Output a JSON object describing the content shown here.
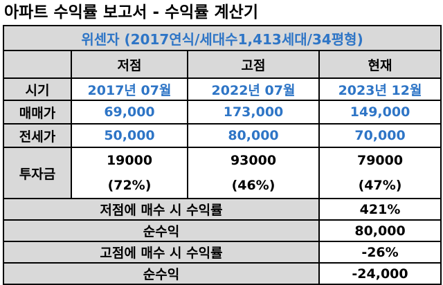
{
  "title": "아파트 수익률 보고서 - 수익률 계산기",
  "subtitle": "위센자 (2017연식/세대수1,413세대/34평형)",
  "columns": [
    "저점",
    "고점",
    "현재"
  ],
  "rows": {
    "period": {
      "label": "시기",
      "values": [
        "2017년 07월",
        "2022년 07월",
        "2023년 12월"
      ]
    },
    "sale_price": {
      "label": "매매가",
      "values": [
        "69,000",
        "173,000",
        "149,000"
      ]
    },
    "jeonse_price": {
      "label": "전세가",
      "values": [
        "50,000",
        "80,000",
        "70,000"
      ]
    },
    "investment": {
      "label": "투자금",
      "amounts": [
        "19000",
        "93000",
        "79000"
      ],
      "ratios": [
        "(72%)",
        "(46%)",
        "(47%)"
      ]
    }
  },
  "summary": [
    {
      "label": "저점에 매수 시 수익률",
      "value": "421%"
    },
    {
      "label": "순수익",
      "value": "80,000"
    },
    {
      "label": "고점에 매수 시 수익률",
      "value": "-26%"
    },
    {
      "label": "순수익",
      "value": "-24,000"
    }
  ],
  "colors": {
    "header_gray": "#d9d9d9",
    "value_blue": "#2e75c6"
  }
}
